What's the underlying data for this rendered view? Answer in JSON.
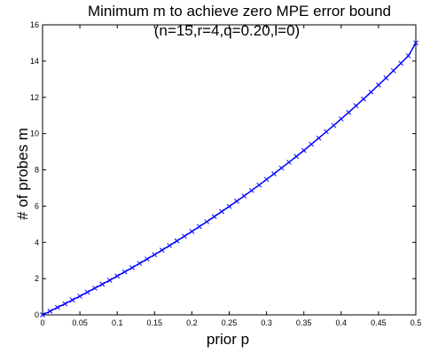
{
  "chart_data": {
    "type": "line",
    "title": "Minimum m to achieve zero MPE error bound",
    "subtitle": "(n=15,r=4,q=0.20,l=0)",
    "xlabel": "prior p",
    "ylabel": "# of probes m",
    "xlim": [
      0,
      0.5
    ],
    "ylim": [
      0,
      16
    ],
    "xticks": [
      "0",
      "0.05",
      "0.1",
      "0.15",
      "0.2",
      "0.25",
      "0.3",
      "0.35",
      "0.4",
      "0.45",
      "0.5"
    ],
    "yticks": [
      "0",
      "2",
      "4",
      "6",
      "8",
      "10",
      "12",
      "14",
      "16"
    ],
    "grid": false,
    "series": [
      {
        "color": "#0000ff",
        "marker": "x",
        "x": [
          0.0,
          0.01,
          0.02,
          0.03,
          0.04,
          0.05,
          0.06,
          0.07,
          0.08,
          0.09,
          0.1,
          0.11,
          0.12,
          0.13,
          0.14,
          0.15,
          0.16,
          0.17,
          0.18,
          0.19,
          0.2,
          0.21,
          0.22,
          0.23,
          0.24,
          0.25,
          0.26,
          0.27,
          0.28,
          0.29,
          0.3,
          0.31,
          0.32,
          0.33,
          0.34,
          0.35,
          0.36,
          0.37,
          0.38,
          0.39,
          0.4,
          0.41,
          0.42,
          0.43,
          0.44,
          0.45,
          0.46,
          0.47,
          0.48,
          0.49,
          0.5
        ],
        "y": [
          0.0,
          0.2,
          0.41,
          0.61,
          0.82,
          1.03,
          1.25,
          1.47,
          1.69,
          1.91,
          2.14,
          2.37,
          2.6,
          2.84,
          3.08,
          3.32,
          3.57,
          3.82,
          4.08,
          4.34,
          4.6,
          4.87,
          5.14,
          5.42,
          5.7,
          5.98,
          6.27,
          6.56,
          6.86,
          7.16,
          7.47,
          7.78,
          8.1,
          8.42,
          8.74,
          9.07,
          9.41,
          9.75,
          10.1,
          10.45,
          10.81,
          11.17,
          11.54,
          11.91,
          12.29,
          12.68,
          13.07,
          13.47,
          13.88,
          14.29,
          15.0
        ]
      }
    ]
  }
}
